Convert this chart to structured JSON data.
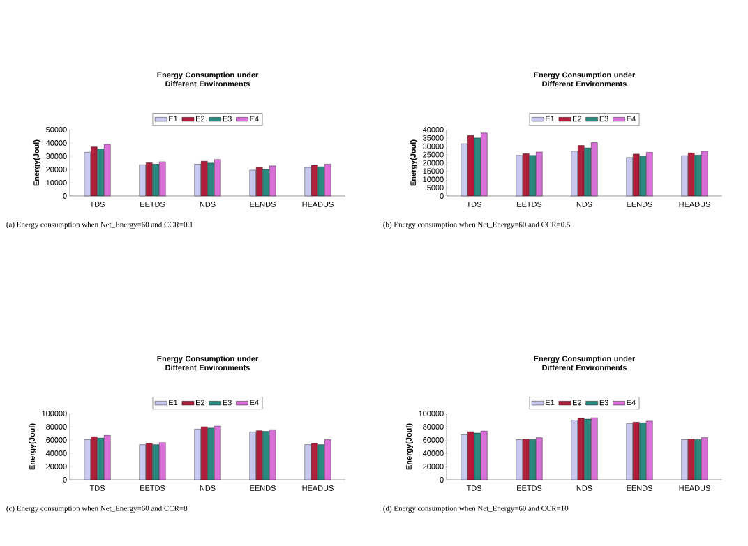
{
  "chart_data": [
    {
      "type": "bar",
      "title": "Energy Consumption under Different Environments",
      "ylabel": "Energy(Joul)",
      "categories": [
        "TDS",
        "EETDS",
        "NDS",
        "EENDS",
        "HEADUS"
      ],
      "series": [
        {
          "name": "E1",
          "color": "#c8c8f0",
          "values": [
            33000,
            23500,
            24000,
            19500,
            21500
          ]
        },
        {
          "name": "E2",
          "color": "#b01e3c",
          "values": [
            37000,
            25000,
            26200,
            21500,
            23200
          ]
        },
        {
          "name": "E3",
          "color": "#2a8a80",
          "values": [
            35500,
            24000,
            24800,
            20000,
            22000
          ]
        },
        {
          "name": "E4",
          "color": "#d870d8",
          "values": [
            39000,
            25800,
            27500,
            22700,
            24000
          ]
        }
      ],
      "ylim": [
        0,
        50000
      ],
      "yticks": [
        0,
        10000,
        20000,
        30000,
        40000,
        50000
      ],
      "legend": "top",
      "annotations": [
        "(a) Energy consumption when Net_Energy=60 and CCR=0.1"
      ]
    },
    {
      "type": "bar",
      "title": "Energy Consumption under Different Environments",
      "ylabel": "Energy(Joul)",
      "categories": [
        "TDS",
        "EETDS",
        "NDS",
        "EENDS",
        "HEADUS"
      ],
      "series": [
        {
          "name": "E1",
          "color": "#c8c8f0",
          "values": [
            31500,
            24500,
            27000,
            23200,
            24300
          ]
        },
        {
          "name": "E2",
          "color": "#b01e3c",
          "values": [
            36500,
            25500,
            30500,
            25300,
            26000
          ]
        },
        {
          "name": "E3",
          "color": "#2a8a80",
          "values": [
            35000,
            24500,
            29000,
            23900,
            24700
          ]
        },
        {
          "name": "E4",
          "color": "#d870d8",
          "values": [
            38000,
            26500,
            32200,
            26300,
            27000
          ]
        }
      ],
      "ylim": [
        0,
        40000
      ],
      "yticks": [
        0,
        5000,
        10000,
        15000,
        20000,
        25000,
        30000,
        35000,
        40000
      ],
      "legend": "top",
      "annotations": [
        "(b) Energy consumption when Net_Energy=60 and CCR=0.5"
      ]
    },
    {
      "type": "bar",
      "title": "Energy Consumption under Different Environments",
      "ylabel": "Energy(Joul)",
      "categories": [
        "TDS",
        "EETDS",
        "NDS",
        "EENDS",
        "HEADUS"
      ],
      "series": [
        {
          "name": "E1",
          "color": "#c8c8f0",
          "values": [
            60500,
            53000,
            76500,
            72000,
            53000
          ]
        },
        {
          "name": "E2",
          "color": "#b01e3c",
          "values": [
            65000,
            55000,
            80000,
            74000,
            55000
          ]
        },
        {
          "name": "E3",
          "color": "#2a8a80",
          "values": [
            63000,
            53000,
            78000,
            73000,
            53000
          ]
        },
        {
          "name": "E4",
          "color": "#d870d8",
          "values": [
            67000,
            56000,
            81000,
            75500,
            60500
          ]
        }
      ],
      "ylim": [
        0,
        100000
      ],
      "yticks": [
        0,
        20000,
        40000,
        60000,
        80000,
        100000
      ],
      "legend": "top",
      "annotations": [
        "(c) Energy consumption when Net_Energy=60 and CCR=8"
      ]
    },
    {
      "type": "bar",
      "title": "Energy Consumption under Different Environments",
      "ylabel": "Energy(Joul)",
      "categories": [
        "TDS",
        "EETDS",
        "NDS",
        "EENDS",
        "HEADUS"
      ],
      "series": [
        {
          "name": "E1",
          "color": "#c8c8f0",
          "values": [
            68000,
            60500,
            90000,
            85000,
            60500
          ]
        },
        {
          "name": "E2",
          "color": "#b01e3c",
          "values": [
            72500,
            61500,
            92500,
            87000,
            61500
          ]
        },
        {
          "name": "E3",
          "color": "#2a8a80",
          "values": [
            70500,
            60500,
            91500,
            86000,
            60500
          ]
        },
        {
          "name": "E4",
          "color": "#d870d8",
          "values": [
            73500,
            63500,
            93500,
            88500,
            63500
          ]
        }
      ],
      "ylim": [
        0,
        100000
      ],
      "yticks": [
        0,
        20000,
        40000,
        60000,
        80000,
        100000
      ],
      "legend": "top",
      "annotations": [
        "(d) Energy consumption when Net_Energy=60 and CCR=10"
      ]
    }
  ]
}
